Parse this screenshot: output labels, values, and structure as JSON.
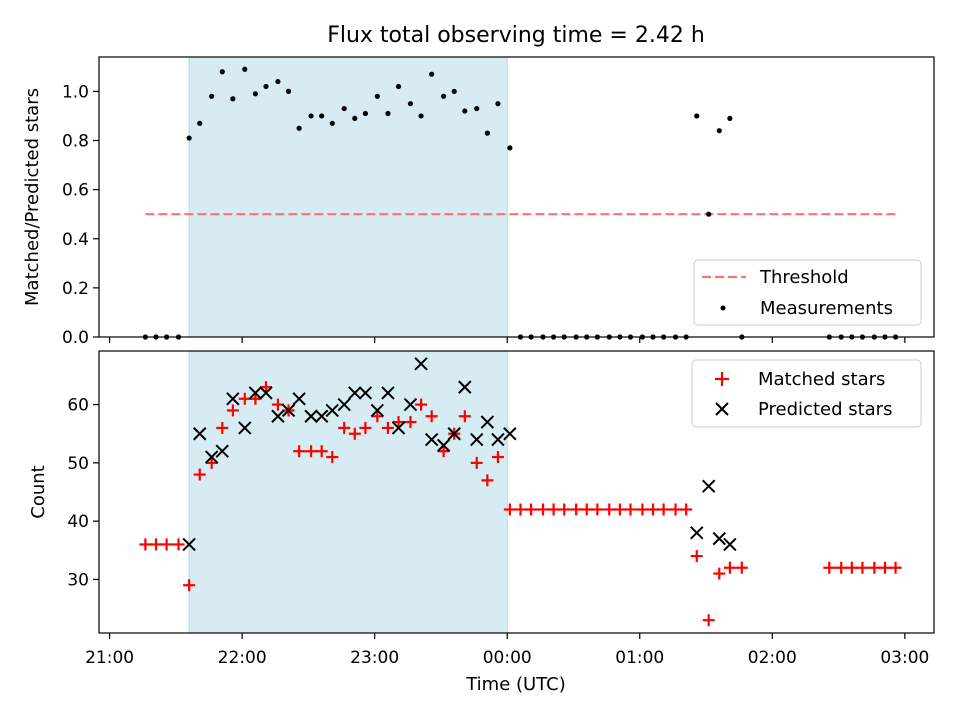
{
  "chart_data": [
    {
      "type": "scatter",
      "title": "Flux total observing time = 2.42 h",
      "ylabel": "Matched/Predicted stars",
      "xlabel": "",
      "x_unit": "hours since 21:00 UTC",
      "xlim": [
        -0.08,
        6.22
      ],
      "ylim": [
        0.0,
        1.14
      ],
      "yticks": [
        0.0,
        0.2,
        0.4,
        0.6,
        0.8,
        1.0
      ],
      "ytick_labels": [
        "0.0",
        "0.2",
        "0.4",
        "0.6",
        "0.8",
        "1.0"
      ],
      "shaded_span": [
        0.6,
        3.0
      ],
      "legend_position": "lower right",
      "threshold": {
        "name": "Threshold",
        "value": 0.5,
        "x_range": [
          0.27,
          5.93
        ],
        "color": "#ff7070"
      },
      "series": [
        {
          "name": "Measurements",
          "color": "#000000",
          "points": [
            [
              0.27,
              0.0
            ],
            [
              0.35,
              0.0
            ],
            [
              0.43,
              0.0
            ],
            [
              0.52,
              0.0
            ],
            [
              0.6,
              0.81
            ],
            [
              0.68,
              0.87
            ],
            [
              0.77,
              0.98
            ],
            [
              0.85,
              1.08
            ],
            [
              0.93,
              0.97
            ],
            [
              1.02,
              1.09
            ],
            [
              1.1,
              0.99
            ],
            [
              1.18,
              1.02
            ],
            [
              1.27,
              1.04
            ],
            [
              1.35,
              1.0
            ],
            [
              1.43,
              0.85
            ],
            [
              1.52,
              0.9
            ],
            [
              1.6,
              0.9
            ],
            [
              1.68,
              0.87
            ],
            [
              1.77,
              0.93
            ],
            [
              1.85,
              0.89
            ],
            [
              1.93,
              0.91
            ],
            [
              2.02,
              0.98
            ],
            [
              2.1,
              0.91
            ],
            [
              2.18,
              1.02
            ],
            [
              2.27,
              0.95
            ],
            [
              2.35,
              0.9
            ],
            [
              2.43,
              1.07
            ],
            [
              2.52,
              0.98
            ],
            [
              2.6,
              1.0
            ],
            [
              2.68,
              0.92
            ],
            [
              2.77,
              0.93
            ],
            [
              2.85,
              0.83
            ],
            [
              2.93,
              0.95
            ],
            [
              3.02,
              0.77
            ],
            [
              3.1,
              0.0
            ],
            [
              3.18,
              0.0
            ],
            [
              3.27,
              0.0
            ],
            [
              3.35,
              0.0
            ],
            [
              3.43,
              0.0
            ],
            [
              3.52,
              0.0
            ],
            [
              3.6,
              0.0
            ],
            [
              3.68,
              0.0
            ],
            [
              3.77,
              0.0
            ],
            [
              3.85,
              0.0
            ],
            [
              3.93,
              0.0
            ],
            [
              4.02,
              0.0
            ],
            [
              4.1,
              0.0
            ],
            [
              4.18,
              0.0
            ],
            [
              4.27,
              0.0
            ],
            [
              4.35,
              0.0
            ],
            [
              4.43,
              0.9
            ],
            [
              4.52,
              0.5
            ],
            [
              4.6,
              0.84
            ],
            [
              4.68,
              0.89
            ],
            [
              4.77,
              0.0
            ],
            [
              5.43,
              0.0
            ],
            [
              5.52,
              0.0
            ],
            [
              5.6,
              0.0
            ],
            [
              5.68,
              0.0
            ],
            [
              5.77,
              0.0
            ],
            [
              5.85,
              0.0
            ],
            [
              5.93,
              0.0
            ]
          ]
        }
      ]
    },
    {
      "type": "scatter",
      "title": "",
      "ylabel": "Count",
      "xlabel": "Time (UTC)",
      "x_unit": "hours since 21:00 UTC",
      "xlim": [
        -0.08,
        6.22
      ],
      "ylim": [
        20.8,
        69.2
      ],
      "yticks": [
        30,
        40,
        50,
        60
      ],
      "ytick_labels": [
        "30",
        "40",
        "50",
        "60"
      ],
      "xticks": [
        0,
        1,
        2,
        3,
        4,
        5,
        6
      ],
      "xtick_labels": [
        "21:00",
        "22:00",
        "23:00",
        "00:00",
        "01:00",
        "02:00",
        "03:00"
      ],
      "shaded_span": [
        0.6,
        3.0
      ],
      "legend_position": "upper right",
      "series": [
        {
          "name": "Matched stars",
          "marker": "plus",
          "color": "#ff0000",
          "points": [
            [
              0.27,
              36
            ],
            [
              0.35,
              36
            ],
            [
              0.43,
              36
            ],
            [
              0.52,
              36
            ],
            [
              0.6,
              29
            ],
            [
              0.68,
              48
            ],
            [
              0.77,
              50
            ],
            [
              0.85,
              56
            ],
            [
              0.93,
              59
            ],
            [
              1.02,
              61
            ],
            [
              1.1,
              61
            ],
            [
              1.18,
              63
            ],
            [
              1.27,
              60
            ],
            [
              1.35,
              59
            ],
            [
              1.43,
              52
            ],
            [
              1.52,
              52
            ],
            [
              1.6,
              52
            ],
            [
              1.68,
              51
            ],
            [
              1.77,
              56
            ],
            [
              1.85,
              55
            ],
            [
              1.93,
              56
            ],
            [
              2.02,
              58
            ],
            [
              2.1,
              56
            ],
            [
              2.18,
              57
            ],
            [
              2.27,
              57
            ],
            [
              2.35,
              60
            ],
            [
              2.43,
              58
            ],
            [
              2.52,
              52
            ],
            [
              2.6,
              55
            ],
            [
              2.68,
              58
            ],
            [
              2.77,
              50
            ],
            [
              2.85,
              47
            ],
            [
              2.93,
              51
            ],
            [
              3.02,
              42
            ],
            [
              3.1,
              42
            ],
            [
              3.18,
              42
            ],
            [
              3.27,
              42
            ],
            [
              3.35,
              42
            ],
            [
              3.43,
              42
            ],
            [
              3.52,
              42
            ],
            [
              3.6,
              42
            ],
            [
              3.68,
              42
            ],
            [
              3.77,
              42
            ],
            [
              3.85,
              42
            ],
            [
              3.93,
              42
            ],
            [
              4.02,
              42
            ],
            [
              4.1,
              42
            ],
            [
              4.18,
              42
            ],
            [
              4.27,
              42
            ],
            [
              4.35,
              42
            ],
            [
              4.43,
              34
            ],
            [
              4.52,
              23
            ],
            [
              4.6,
              31
            ],
            [
              4.68,
              32
            ],
            [
              4.77,
              32
            ],
            [
              5.43,
              32
            ],
            [
              5.52,
              32
            ],
            [
              5.6,
              32
            ],
            [
              5.68,
              32
            ],
            [
              5.77,
              32
            ],
            [
              5.85,
              32
            ],
            [
              5.93,
              32
            ]
          ]
        },
        {
          "name": "Predicted stars",
          "marker": "x",
          "color": "#000000",
          "points": [
            [
              0.6,
              36
            ],
            [
              0.68,
              55
            ],
            [
              0.77,
              51
            ],
            [
              0.85,
              52
            ],
            [
              0.93,
              61
            ],
            [
              1.02,
              56
            ],
            [
              1.1,
              62
            ],
            [
              1.18,
              62
            ],
            [
              1.27,
              58
            ],
            [
              1.35,
              59
            ],
            [
              1.43,
              61
            ],
            [
              1.52,
              58
            ],
            [
              1.6,
              58
            ],
            [
              1.68,
              59
            ],
            [
              1.77,
              60
            ],
            [
              1.85,
              62
            ],
            [
              1.93,
              62
            ],
            [
              2.02,
              59
            ],
            [
              2.1,
              62
            ],
            [
              2.18,
              56
            ],
            [
              2.27,
              60
            ],
            [
              2.35,
              67
            ],
            [
              2.43,
              54
            ],
            [
              2.52,
              53
            ],
            [
              2.6,
              55
            ],
            [
              2.68,
              63
            ],
            [
              2.77,
              54
            ],
            [
              2.85,
              57
            ],
            [
              2.93,
              54
            ],
            [
              3.02,
              55
            ],
            [
              4.43,
              38
            ],
            [
              4.52,
              46
            ],
            [
              4.6,
              37
            ],
            [
              4.68,
              36
            ]
          ]
        }
      ]
    }
  ],
  "legend": {
    "threshold_label": "Threshold",
    "measurements_label": "Measurements",
    "matched_label": "Matched stars",
    "predicted_label": "Predicted stars"
  },
  "colors": {
    "span_fill": "#add8e6",
    "threshold": "#ff7070",
    "matched": "#ff0000",
    "predicted": "#000000",
    "measurements": "#000000"
  }
}
